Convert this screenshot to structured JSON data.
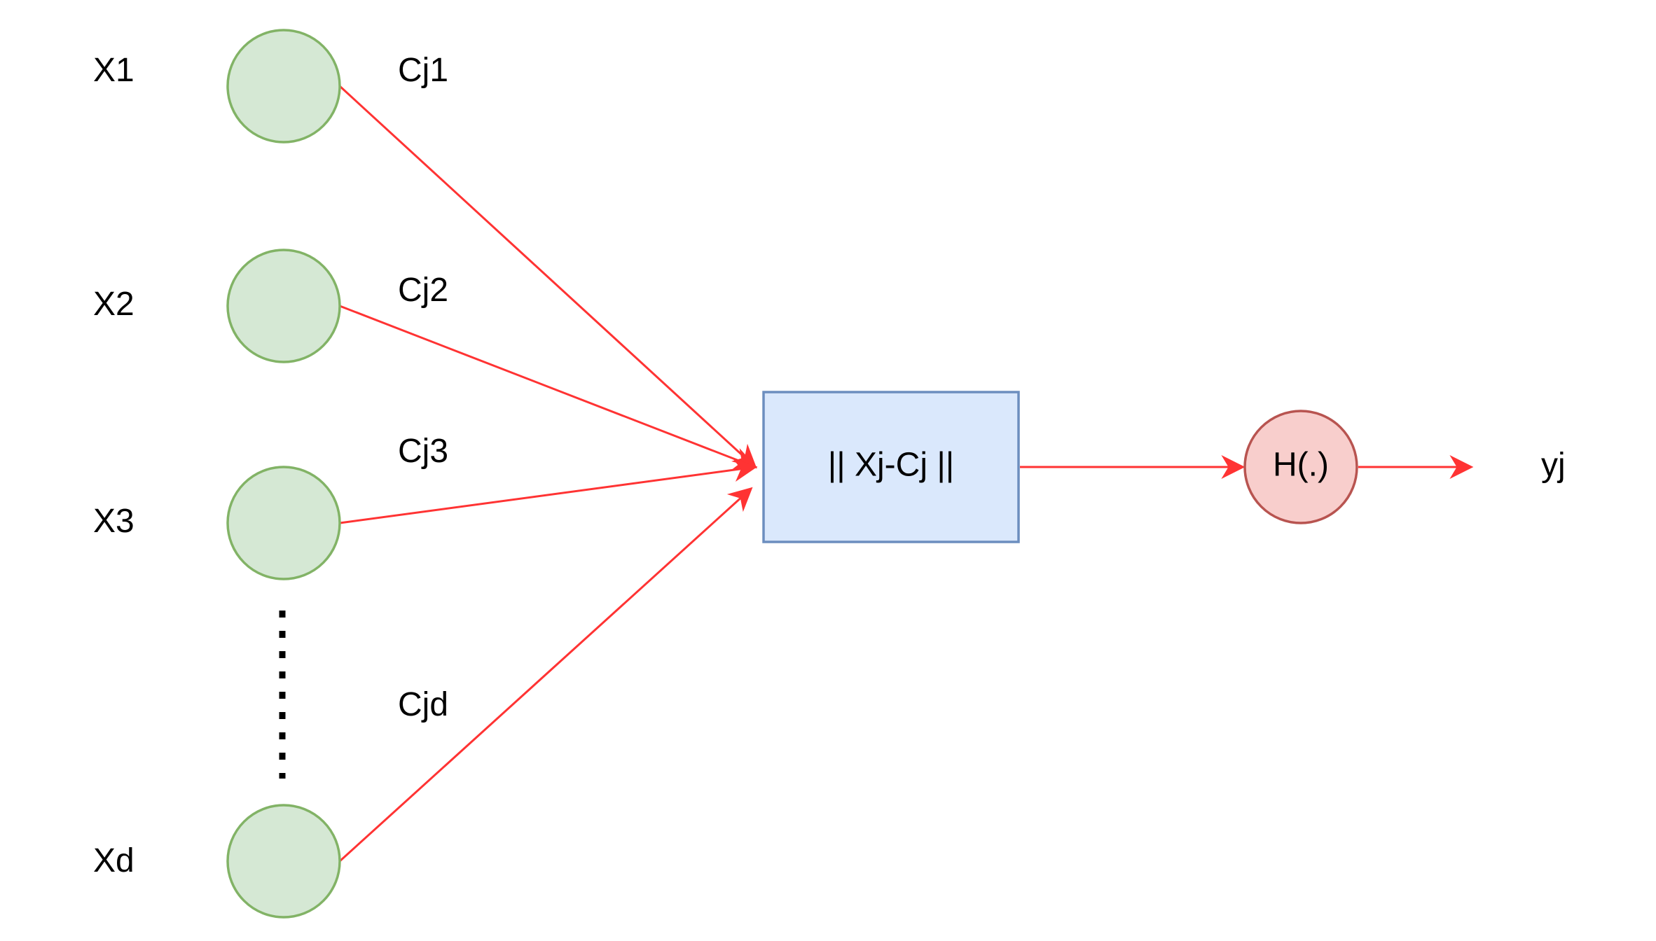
{
  "inputs": [
    {
      "label": "X1",
      "weight": "Cj1"
    },
    {
      "label": "X2",
      "weight": "Cj2"
    },
    {
      "label": "X3",
      "weight": "Cj3"
    },
    {
      "label": "Xd",
      "weight": "Cjd"
    }
  ],
  "distance_box": {
    "label": "|| Xj-Cj ||"
  },
  "activation": {
    "label": "H(.)"
  },
  "output": {
    "label": "yj"
  },
  "colors": {
    "input_fill": "#d5e8d4",
    "input_stroke": "#82b366",
    "box_fill": "#dae8fc",
    "box_stroke": "#6c8ebf",
    "activation_fill": "#f8cecc",
    "activation_stroke": "#b85450",
    "arrow": "#ff3333",
    "ellipsis": "#000000"
  }
}
